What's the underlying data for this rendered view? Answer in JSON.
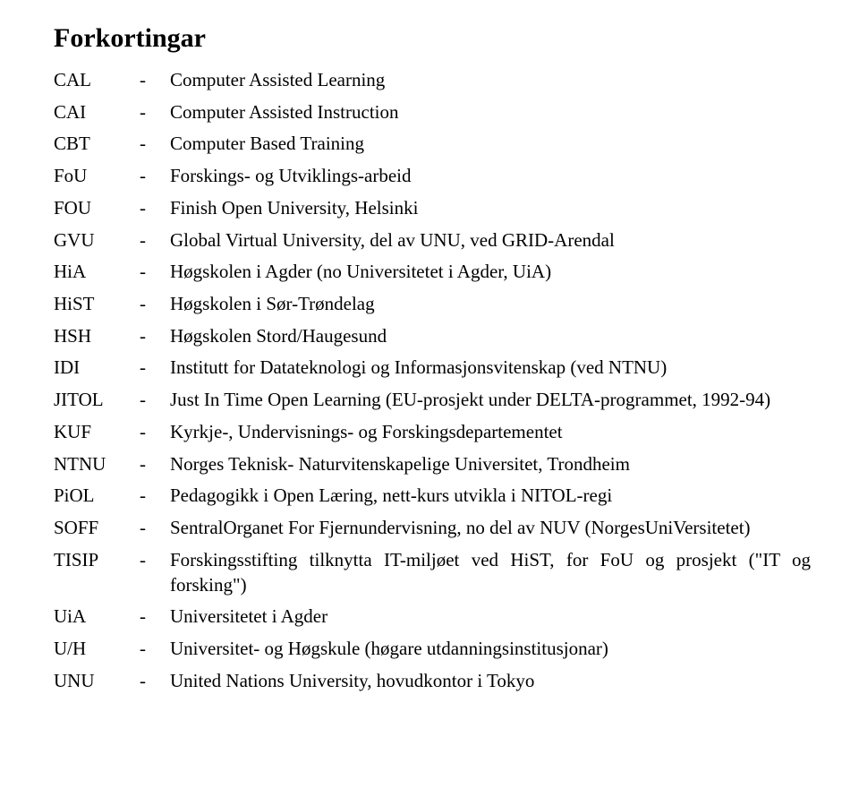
{
  "title": "Forkortingar",
  "rows": [
    {
      "abbr": "CAL",
      "dash": "-",
      "def": "Computer Assisted Learning"
    },
    {
      "abbr": "CAI",
      "dash": "-",
      "def": "Computer Assisted Instruction"
    },
    {
      "abbr": "CBT",
      "dash": "-",
      "def": "Computer Based Training"
    },
    {
      "abbr": "FoU",
      "dash": "-",
      "def": "Forskings- og Utviklings-arbeid"
    },
    {
      "abbr": "FOU",
      "dash": "-",
      "def": "Finish Open University, Helsinki"
    },
    {
      "abbr": "GVU",
      "dash": "-",
      "def": "Global Virtual University, del av UNU, ved GRID-Arendal"
    },
    {
      "abbr": "HiA",
      "dash": "-",
      "def": "Høgskolen i Agder (no Universitetet i Agder, UiA)"
    },
    {
      "abbr": "HiST",
      "dash": "-",
      "def": "Høgskolen i Sør-Trøndelag"
    },
    {
      "abbr": "HSH",
      "dash": "-",
      "def": "Høgskolen Stord/Haugesund"
    },
    {
      "abbr": "IDI",
      "dash": "-",
      "def": "Institutt for Datateknologi og Informasjonsvitenskap (ved NTNU)"
    },
    {
      "abbr": "JITOL",
      "dash": "-",
      "def": "Just In Time Open Learning (EU-prosjekt under DELTA-programmet, 1992-94)"
    },
    {
      "abbr": "KUF",
      "dash": "-",
      "def": "Kyrkje-, Undervisnings- og Forskingsdepartementet"
    },
    {
      "abbr": "NTNU",
      "dash": "-",
      "def": "Norges Teknisk- Naturvitenskapelige Universitet, Trondheim"
    },
    {
      "abbr": "PiOL",
      "dash": "-",
      "def": "Pedagogikk i Open Læring, nett-kurs utvikla i NITOL-regi"
    },
    {
      "abbr": "SOFF",
      "dash": "-",
      "def": "SentralOrganet For Fjernundervisning, no del av NUV (NorgesUniVersitetet)"
    },
    {
      "abbr": "TISIP",
      "dash": "-",
      "def": "Forskingsstifting tilknytta IT-miljøet ved HiST, for FoU og prosjekt (\"IT og forsking\")"
    },
    {
      "abbr": "UiA",
      "dash": "-",
      "def": "Universitetet i Agder"
    },
    {
      "abbr": "U/H",
      "dash": "-",
      "def": "Universitet- og Høgskule (høgare utdanningsinstitusjonar)"
    },
    {
      "abbr": "UNU",
      "dash": "-",
      "def": "United Nations University, hovudkontor i Tokyo"
    }
  ]
}
